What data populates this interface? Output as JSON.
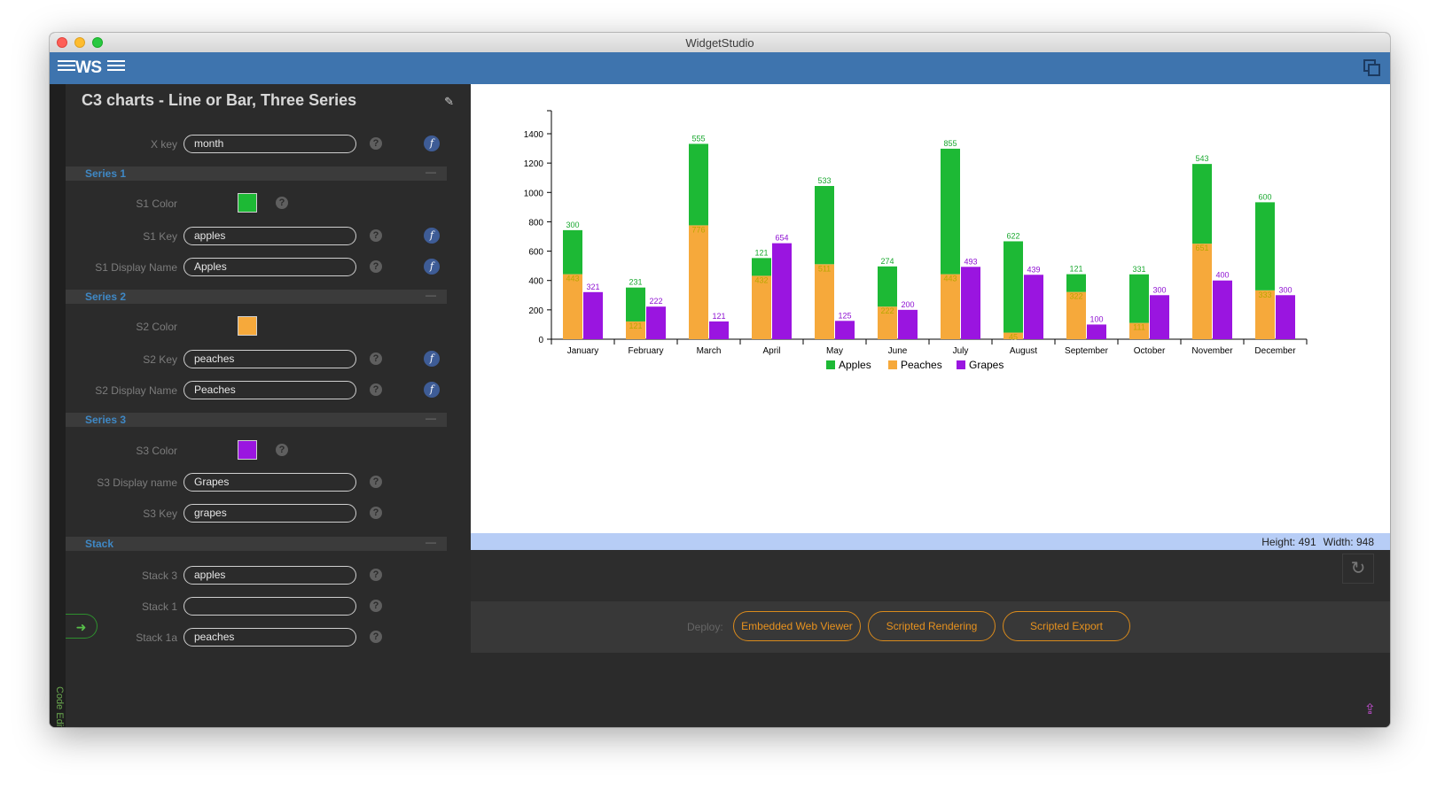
{
  "window": {
    "title": "WidgetStudio"
  },
  "app": {
    "logo_text": "WS",
    "code_editor_label": "Code Editor"
  },
  "panel": {
    "title": "C3 charts - Line or Bar, Three Series",
    "xkey": {
      "label": "X key",
      "value": "month"
    },
    "series1": {
      "header": "Series 1",
      "color_label": "S1 Color",
      "color": "#1db935",
      "key_label": "S1 Key",
      "key_value": "apples",
      "display_label": "S1 Display Name",
      "display_value": "Apples"
    },
    "series2": {
      "header": "Series 2",
      "color_label": "S2 Color",
      "color": "#f6a93b",
      "key_label": "S2 Key",
      "key_value": "peaches",
      "display_label": "S2 Display Name",
      "display_value": "Peaches"
    },
    "series3": {
      "header": "Series 3",
      "color_label": "S3 Color",
      "color": "#9a15e0",
      "display_label": "S3 Display name",
      "display_value": "Grapes",
      "key_label": "S3 Key",
      "key_value": "grapes"
    },
    "stack": {
      "header": "Stack",
      "stack3_label": "Stack 3",
      "stack3_value": "apples",
      "stack1_label": "Stack 1",
      "stack1_value": "",
      "stack1a_label": "Stack 1a",
      "stack1a_value": "peaches"
    }
  },
  "size_bar": {
    "height_text": "Height: 491",
    "width_text": "Width: 948"
  },
  "deploy": {
    "label": "Deploy:",
    "buttons": [
      "Embedded Web Viewer",
      "Scripted Rendering",
      "Scripted Export"
    ]
  },
  "chart_data": {
    "type": "bar",
    "stacked_groups": [
      [
        "apples",
        "peaches"
      ],
      [
        "grapes"
      ]
    ],
    "categories": [
      "January",
      "February",
      "March",
      "April",
      "May",
      "June",
      "July",
      "August",
      "September",
      "October",
      "November",
      "December"
    ],
    "series": [
      {
        "name": "Apples",
        "key": "apples",
        "color": "#1db935",
        "values": [
          300,
          231,
          555,
          121,
          533,
          274,
          855,
          622,
          121,
          331,
          543,
          600
        ]
      },
      {
        "name": "Peaches",
        "key": "peaches",
        "color": "#f6a93b",
        "values": [
          443,
          121,
          776,
          432,
          511,
          222,
          443,
          45,
          322,
          111,
          651,
          333
        ]
      },
      {
        "name": "Grapes",
        "key": "grapes",
        "color": "#9a15e0",
        "values": [
          321,
          222,
          121,
          654,
          125,
          200,
          493,
          439,
          100,
          300,
          400,
          300
        ]
      }
    ],
    "y_ticks": [
      0,
      200,
      400,
      600,
      800,
      1000,
      1200,
      1400
    ],
    "ylim": [
      0,
      1550
    ],
    "legend_position": "bottom",
    "grid": false
  }
}
